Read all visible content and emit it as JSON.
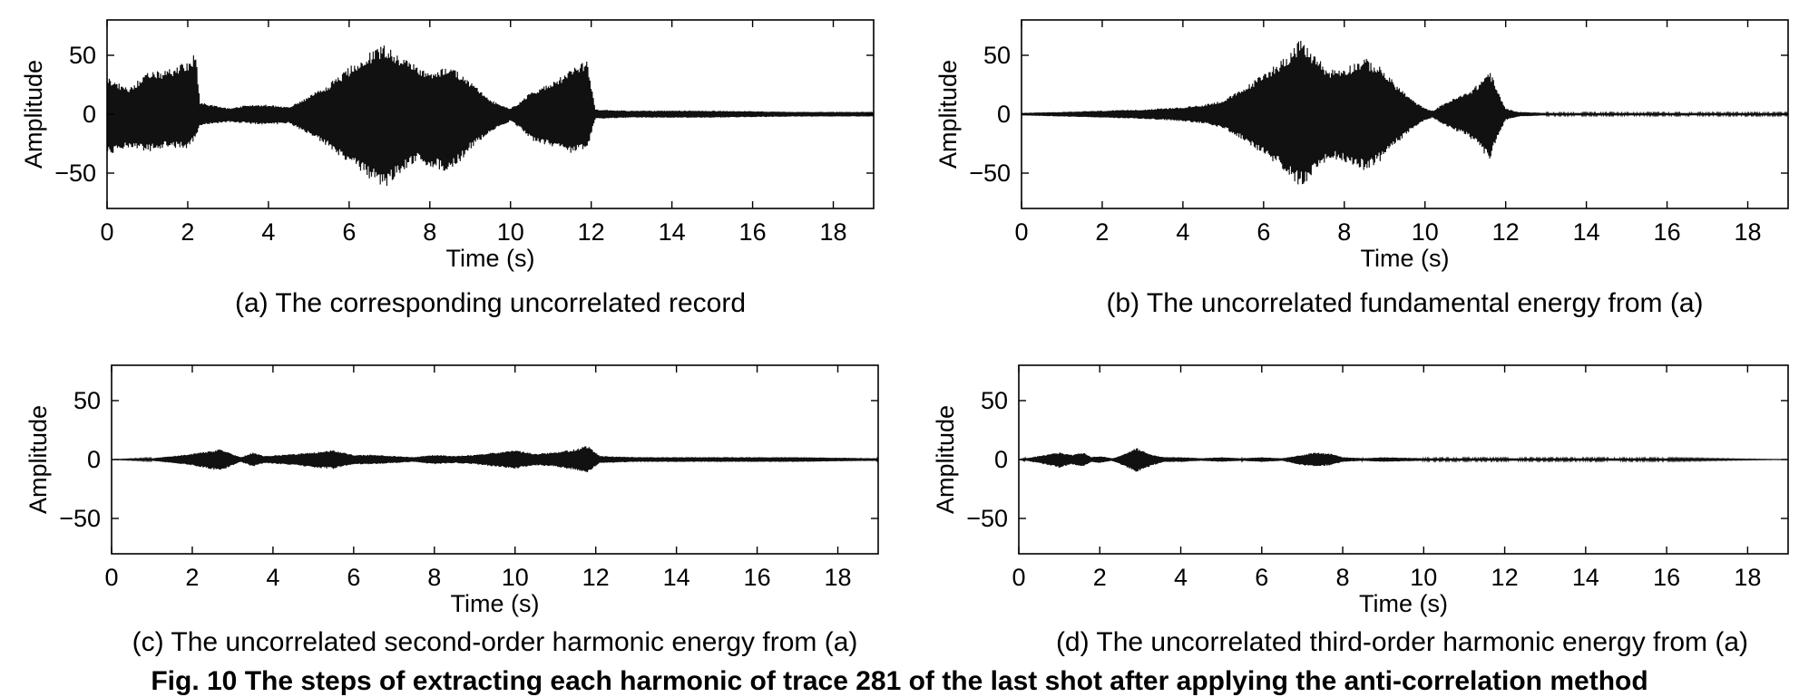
{
  "figure_caption": "Fig. 10 The steps of extracting each harmonic of trace 281 of the last shot after applying the anti-correlation method",
  "chart_data": [
    {
      "type": "area",
      "caption": "(a) The corresponding uncorrelated record",
      "xlabel": "Time (s)",
      "ylabel": "Amplitude",
      "xlim": [
        0,
        19
      ],
      "ylim": [
        -80,
        80
      ],
      "xticks": [
        "0",
        "2",
        "4",
        "6",
        "8",
        "10",
        "12",
        "14",
        "16",
        "18"
      ],
      "yticks": [
        "50",
        "0",
        "−50"
      ],
      "grid": false,
      "color": "#111111",
      "envelope": {
        "x": [
          0,
          0.5,
          1.0,
          1.5,
          2.0,
          2.2,
          2.3,
          2.6,
          3.0,
          3.5,
          4.0,
          4.5,
          5.0,
          5.5,
          6.0,
          6.5,
          6.9,
          7.3,
          7.7,
          8.0,
          8.5,
          9.0,
          9.5,
          10.0,
          10.3,
          10.5,
          11.0,
          11.5,
          11.9,
          12.1,
          13.0,
          15.0,
          17.0,
          19.0
        ],
        "upper": [
          32,
          22,
          35,
          38,
          45,
          52,
          10,
          8,
          5,
          8,
          8,
          6,
          15,
          26,
          40,
          53,
          60,
          48,
          42,
          35,
          42,
          28,
          12,
          5,
          12,
          20,
          26,
          38,
          48,
          4,
          3,
          3,
          2,
          2
        ],
        "lower": [
          -35,
          -28,
          -32,
          -28,
          -30,
          -20,
          -10,
          -8,
          -7,
          -8,
          -9,
          -8,
          -17,
          -28,
          -42,
          -55,
          -62,
          -50,
          -40,
          -45,
          -50,
          -30,
          -15,
          -6,
          -14,
          -22,
          -28,
          -33,
          -30,
          -4,
          -3,
          -3,
          -2,
          -2
        ]
      }
    },
    {
      "type": "area",
      "caption": "(b) The uncorrelated fundamental energy from (a)",
      "xlabel": "Time (s)",
      "ylabel": "Amplitude",
      "xlim": [
        0,
        19
      ],
      "ylim": [
        -80,
        80
      ],
      "xticks": [
        "0",
        "2",
        "4",
        "6",
        "8",
        "10",
        "12",
        "14",
        "16",
        "18"
      ],
      "yticks": [
        "50",
        "0",
        "−50"
      ],
      "grid": false,
      "color": "#111111",
      "envelope": {
        "x": [
          0,
          1,
          2,
          3,
          4,
          4.5,
          5,
          5.5,
          6,
          6.5,
          6.9,
          7.3,
          7.6,
          8.0,
          8.5,
          8.9,
          9.3,
          9.7,
          10.0,
          10.2,
          10.5,
          11.0,
          11.3,
          11.6,
          11.8,
          12.0,
          12.3,
          13,
          15,
          17,
          19
        ],
        "upper": [
          1,
          2,
          3,
          4,
          6,
          8,
          12,
          22,
          35,
          48,
          63,
          50,
          38,
          40,
          48,
          40,
          25,
          12,
          5,
          3,
          10,
          18,
          25,
          38,
          20,
          5,
          2,
          1,
          1,
          1,
          1
        ],
        "lower": [
          -1,
          -2,
          -3,
          -4,
          -6,
          -8,
          -12,
          -22,
          -35,
          -48,
          -62,
          -50,
          -38,
          -40,
          -48,
          -40,
          -25,
          -12,
          -5,
          -3,
          -10,
          -18,
          -25,
          -40,
          -20,
          -5,
          -2,
          -1,
          -1,
          -1,
          -1
        ]
      }
    },
    {
      "type": "area",
      "caption": "(c) The uncorrelated second-order harmonic energy from (a)",
      "xlabel": "Time (s)",
      "ylabel": "Amplitude",
      "xlim": [
        0,
        19
      ],
      "ylim": [
        -80,
        80
      ],
      "xticks": [
        "0",
        "2",
        "4",
        "6",
        "8",
        "10",
        "12",
        "14",
        "16",
        "18"
      ],
      "yticks": [
        "50",
        "0",
        "−50"
      ],
      "grid": false,
      "color": "#111111",
      "envelope": {
        "x": [
          0,
          1,
          1.5,
          2.0,
          2.7,
          3.2,
          3.5,
          3.8,
          4.2,
          4.6,
          5.0,
          5.5,
          6.0,
          6.5,
          7.0,
          7.5,
          8.0,
          8.5,
          9.0,
          10.0,
          10.5,
          11.0,
          11.5,
          11.8,
          12.1,
          13,
          15,
          17,
          19
        ],
        "upper": [
          0,
          1,
          3,
          5,
          9,
          2,
          6,
          3,
          4,
          5,
          6,
          8,
          4,
          4,
          3,
          2,
          4,
          3,
          4,
          8,
          5,
          6,
          9,
          12,
          3,
          2,
          2,
          2,
          1
        ],
        "lower": [
          0,
          -1,
          -3,
          -5,
          -10,
          -2,
          -6,
          -3,
          -4,
          -5,
          -7,
          -8,
          -4,
          -4,
          -3,
          -2,
          -4,
          -3,
          -4,
          -8,
          -5,
          -6,
          -9,
          -11,
          -3,
          -2,
          -2,
          -2,
          -1
        ]
      }
    },
    {
      "type": "area",
      "caption": "(d) The uncorrelated third-order harmonic energy from (a)",
      "xlabel": "Time (s)",
      "ylabel": "Amplitude",
      "xlim": [
        0,
        19
      ],
      "ylim": [
        -80,
        80
      ],
      "xticks": [
        "0",
        "2",
        "4",
        "6",
        "8",
        "10",
        "12",
        "14",
        "16",
        "18"
      ],
      "yticks": [
        "50",
        "0",
        "−50"
      ],
      "grid": false,
      "color": "#111111",
      "envelope": {
        "x": [
          0,
          0.5,
          1.0,
          1.3,
          1.6,
          1.8,
          2.0,
          2.3,
          2.5,
          2.9,
          3.3,
          3.6,
          4.0,
          4.5,
          5.0,
          5.5,
          6.0,
          6.5,
          7.0,
          7.3,
          7.7,
          8.0,
          8.5,
          9,
          10,
          12,
          14,
          16,
          19
        ],
        "upper": [
          0,
          3,
          6,
          4,
          6,
          2,
          3,
          1,
          3,
          10,
          4,
          2,
          2,
          1,
          2,
          1,
          2,
          1,
          4,
          6,
          5,
          2,
          1,
          2,
          1,
          1,
          1,
          1,
          0
        ],
        "lower": [
          0,
          -3,
          -7,
          -4,
          -6,
          -2,
          -3,
          -1,
          -4,
          -11,
          -5,
          -2,
          -2,
          -1,
          -2,
          -1,
          -2,
          -1,
          -5,
          -6,
          -5,
          -2,
          -1,
          -2,
          -1,
          -1,
          -1,
          -1,
          0
        ]
      }
    }
  ]
}
